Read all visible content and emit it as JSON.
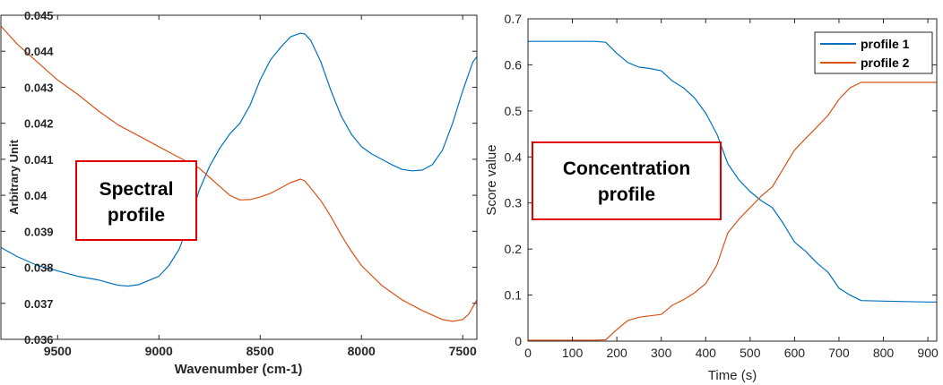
{
  "chart_data": [
    {
      "type": "line",
      "title": "",
      "xlabel": "Wavenumber (cm-1)",
      "ylabel": "Arbitrary Unit",
      "xlim": [
        9780,
        7430
      ],
      "ylim": [
        0.036,
        0.045
      ],
      "x_reversed": true,
      "x_ticks": [
        9500,
        9000,
        8500,
        8000,
        7500
      ],
      "x_tick_labels": [
        "9500",
        "9000",
        "8500",
        "8000",
        "7500"
      ],
      "y_ticks": [
        0.036,
        0.037,
        0.038,
        0.039,
        0.04,
        0.041,
        0.042,
        0.043,
        0.044,
        0.045
      ],
      "y_tick_labels": [
        "0.036",
        "0.037",
        "0.038",
        "0.039",
        "0.04",
        "0.041",
        "0.042",
        "0.043",
        "0.044",
        "0.045"
      ],
      "grid": false,
      "annotation": {
        "lines": [
          "Spectral",
          "profile"
        ]
      },
      "series": [
        {
          "color": "#0072BD",
          "x": [
            9780,
            9700,
            9600,
            9500,
            9400,
            9300,
            9200,
            9150,
            9100,
            9000,
            8950,
            8900,
            8850,
            8800,
            8750,
            8700,
            8650,
            8600,
            8550,
            8500,
            8450,
            8400,
            8350,
            8300,
            8280,
            8250,
            8200,
            8150,
            8100,
            8050,
            8000,
            7950,
            7900,
            7850,
            7800,
            7750,
            7700,
            7650,
            7600,
            7550,
            7500,
            7450,
            7430
          ],
          "y": [
            0.03855,
            0.0383,
            0.03805,
            0.0379,
            0.03775,
            0.03765,
            0.0375,
            0.03748,
            0.03752,
            0.03775,
            0.03805,
            0.0385,
            0.03925,
            0.04015,
            0.0408,
            0.0413,
            0.0417,
            0.042,
            0.0425,
            0.0432,
            0.04375,
            0.0441,
            0.0444,
            0.0445,
            0.04448,
            0.0443,
            0.0437,
            0.0429,
            0.0422,
            0.0417,
            0.04135,
            0.04115,
            0.041,
            0.04085,
            0.04072,
            0.04068,
            0.0407,
            0.04085,
            0.04125,
            0.042,
            0.0429,
            0.0437,
            0.04385
          ]
        },
        {
          "color": "#D95319",
          "x": [
            9780,
            9700,
            9600,
            9500,
            9400,
            9300,
            9200,
            9100,
            9000,
            8900,
            8800,
            8750,
            8700,
            8650,
            8600,
            8550,
            8500,
            8450,
            8400,
            8350,
            8300,
            8280,
            8250,
            8200,
            8150,
            8100,
            8050,
            8000,
            7900,
            7800,
            7700,
            7600,
            7550,
            7500,
            7470,
            7450,
            7430
          ],
          "y": [
            0.0447,
            0.0442,
            0.0437,
            0.0432,
            0.0428,
            0.04235,
            0.04195,
            0.04165,
            0.04135,
            0.04105,
            0.04075,
            0.0405,
            0.04025,
            0.04,
            0.03987,
            0.03988,
            0.03995,
            0.04005,
            0.0402,
            0.04035,
            0.04045,
            0.0404,
            0.0402,
            0.03985,
            0.0394,
            0.0389,
            0.03845,
            0.03805,
            0.0375,
            0.0371,
            0.0368,
            0.03655,
            0.0365,
            0.03655,
            0.0367,
            0.0369,
            0.0371
          ]
        }
      ]
    },
    {
      "type": "line",
      "title": "",
      "xlabel": "Time (s)",
      "ylabel": "Score value",
      "xlim": [
        0,
        920
      ],
      "ylim": [
        0,
        0.7
      ],
      "x_ticks": [
        0,
        100,
        200,
        300,
        400,
        500,
        600,
        700,
        800,
        900
      ],
      "x_tick_labels": [
        "0",
        "100",
        "200",
        "300",
        "400",
        "500",
        "600",
        "700",
        "800",
        "900"
      ],
      "y_ticks": [
        0,
        0.1,
        0.2,
        0.3,
        0.4,
        0.5,
        0.6,
        0.7
      ],
      "y_tick_labels": [
        "0",
        "0.1",
        "0.2",
        "0.3",
        "0.4",
        "0.5",
        "0.6",
        "0.7"
      ],
      "grid": false,
      "legend": "top-right",
      "annotation": {
        "lines": [
          "Concentration",
          "profile"
        ]
      },
      "series": [
        {
          "name": "profile 1",
          "color": "#0072BD",
          "x": [
            0,
            50,
            100,
            150,
            175,
            200,
            225,
            250,
            275,
            300,
            325,
            350,
            375,
            400,
            425,
            450,
            475,
            500,
            525,
            550,
            575,
            600,
            625,
            650,
            675,
            700,
            725,
            750,
            800,
            850,
            900,
            920
          ],
          "y": [
            0.651,
            0.651,
            0.651,
            0.651,
            0.649,
            0.625,
            0.605,
            0.595,
            0.592,
            0.587,
            0.565,
            0.55,
            0.528,
            0.495,
            0.45,
            0.385,
            0.35,
            0.325,
            0.305,
            0.29,
            0.255,
            0.215,
            0.195,
            0.17,
            0.15,
            0.115,
            0.1,
            0.088,
            0.087,
            0.086,
            0.085,
            0.085
          ]
        },
        {
          "name": "profile 2",
          "color": "#D95319",
          "x": [
            0,
            50,
            100,
            150,
            175,
            200,
            225,
            250,
            275,
            300,
            325,
            350,
            375,
            400,
            425,
            450,
            475,
            500,
            525,
            550,
            575,
            600,
            625,
            650,
            675,
            700,
            725,
            750,
            800,
            850,
            900,
            920
          ],
          "y": [
            0.002,
            0.002,
            0.002,
            0.002,
            0.003,
            0.025,
            0.045,
            0.052,
            0.055,
            0.058,
            0.078,
            0.09,
            0.105,
            0.125,
            0.165,
            0.235,
            0.265,
            0.29,
            0.315,
            0.335,
            0.375,
            0.415,
            0.44,
            0.465,
            0.49,
            0.525,
            0.55,
            0.562,
            0.562,
            0.562,
            0.562,
            0.562
          ]
        }
      ]
    }
  ]
}
